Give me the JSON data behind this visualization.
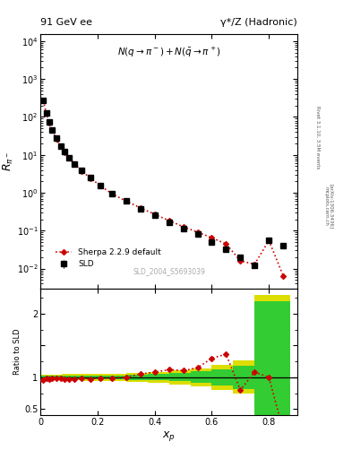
{
  "title_left": "91 GeV ee",
  "title_right": "γ*/Z (Hadronic)",
  "ylabel_main": "$R_{\\pi^-}$",
  "xlabel": "$x_p$",
  "ylabel_ratio": "Ratio to SLD",
  "annotation": "$N(q \\rightarrow \\pi^-)+N(\\bar{q} \\rightarrow \\pi^+)$",
  "watermark": "SLD_2004_S5693039",
  "right_label1": "Rivet 3.1.10, 3.5M events",
  "right_label2": "[arXiv:1306.3436]",
  "right_label3": "mcplots.cern.ch",
  "sld_x": [
    0.01,
    0.02,
    0.03,
    0.04,
    0.055,
    0.07,
    0.085,
    0.1,
    0.12,
    0.145,
    0.175,
    0.21,
    0.25,
    0.3,
    0.35,
    0.4,
    0.45,
    0.5,
    0.55,
    0.6,
    0.65,
    0.7,
    0.75,
    0.8,
    0.85
  ],
  "sld_y": [
    280.0,
    130.0,
    72.0,
    46.0,
    27.0,
    17.0,
    12.0,
    8.5,
    5.8,
    3.8,
    2.5,
    1.55,
    0.95,
    0.6,
    0.38,
    0.25,
    0.165,
    0.115,
    0.08,
    0.05,
    0.033,
    0.02,
    0.012,
    0.055,
    0.04
  ],
  "sld_yerr": [
    14.0,
    6.5,
    3.6,
    2.3,
    1.35,
    0.85,
    0.6,
    0.43,
    0.29,
    0.19,
    0.125,
    0.078,
    0.048,
    0.03,
    0.019,
    0.013,
    0.008,
    0.006,
    0.004,
    0.0025,
    0.0017,
    0.001,
    0.0006,
    0.003,
    0.002
  ],
  "sherpa_x": [
    0.01,
    0.02,
    0.03,
    0.04,
    0.055,
    0.07,
    0.085,
    0.1,
    0.12,
    0.145,
    0.175,
    0.21,
    0.25,
    0.3,
    0.35,
    0.4,
    0.45,
    0.5,
    0.55,
    0.6,
    0.65,
    0.7,
    0.75,
    0.8,
    0.85
  ],
  "sherpa_y": [
    268.0,
    127.0,
    70.0,
    45.5,
    26.5,
    16.8,
    11.7,
    8.3,
    5.65,
    3.72,
    2.44,
    1.53,
    0.94,
    0.6,
    0.4,
    0.27,
    0.185,
    0.127,
    0.092,
    0.065,
    0.045,
    0.016,
    0.013,
    0.055,
    0.0065
  ],
  "ratio_x": [
    0.01,
    0.02,
    0.03,
    0.04,
    0.055,
    0.07,
    0.085,
    0.1,
    0.12,
    0.145,
    0.175,
    0.21,
    0.25,
    0.3,
    0.35,
    0.4,
    0.45,
    0.5,
    0.55,
    0.6,
    0.65,
    0.7,
    0.75,
    0.8,
    0.85
  ],
  "ratio_y": [
    0.957,
    0.977,
    0.972,
    0.989,
    0.981,
    0.988,
    0.975,
    0.976,
    0.974,
    0.979,
    0.976,
    0.987,
    0.989,
    1.0,
    1.053,
    1.08,
    1.121,
    1.104,
    1.15,
    1.3,
    1.364,
    0.8,
    1.083,
    1.0,
    0.163
  ],
  "green_band_xedges": [
    0.0,
    0.075,
    0.15,
    0.225,
    0.3,
    0.375,
    0.45,
    0.525,
    0.6,
    0.675,
    0.75,
    0.875
  ],
  "green_band_lo": [
    0.98,
    0.975,
    0.972,
    0.968,
    0.96,
    0.95,
    0.935,
    0.91,
    0.87,
    0.82,
    0.4,
    0.4
  ],
  "green_band_hi": [
    1.02,
    1.025,
    1.028,
    1.032,
    1.04,
    1.05,
    1.065,
    1.09,
    1.13,
    1.18,
    2.2,
    2.2
  ],
  "yellow_band_xedges": [
    0.0,
    0.075,
    0.15,
    0.225,
    0.3,
    0.375,
    0.45,
    0.525,
    0.6,
    0.675,
    0.75,
    0.875
  ],
  "yellow_band_lo": [
    0.96,
    0.952,
    0.946,
    0.94,
    0.928,
    0.912,
    0.89,
    0.856,
    0.8,
    0.74,
    0.3,
    0.3
  ],
  "yellow_band_hi": [
    1.04,
    1.048,
    1.054,
    1.06,
    1.072,
    1.088,
    1.11,
    1.144,
    1.2,
    1.26,
    2.3,
    2.3
  ],
  "xlim": [
    0.0,
    0.9
  ],
  "ylim_main_log": [
    0.003,
    15000
  ],
  "ylim_ratio": [
    0.4,
    2.4
  ],
  "sld_color": "#000000",
  "sherpa_color": "#cc0000",
  "green_band_color": "#33cc33",
  "yellow_band_color": "#dddd00",
  "bg_color": "#ffffff"
}
